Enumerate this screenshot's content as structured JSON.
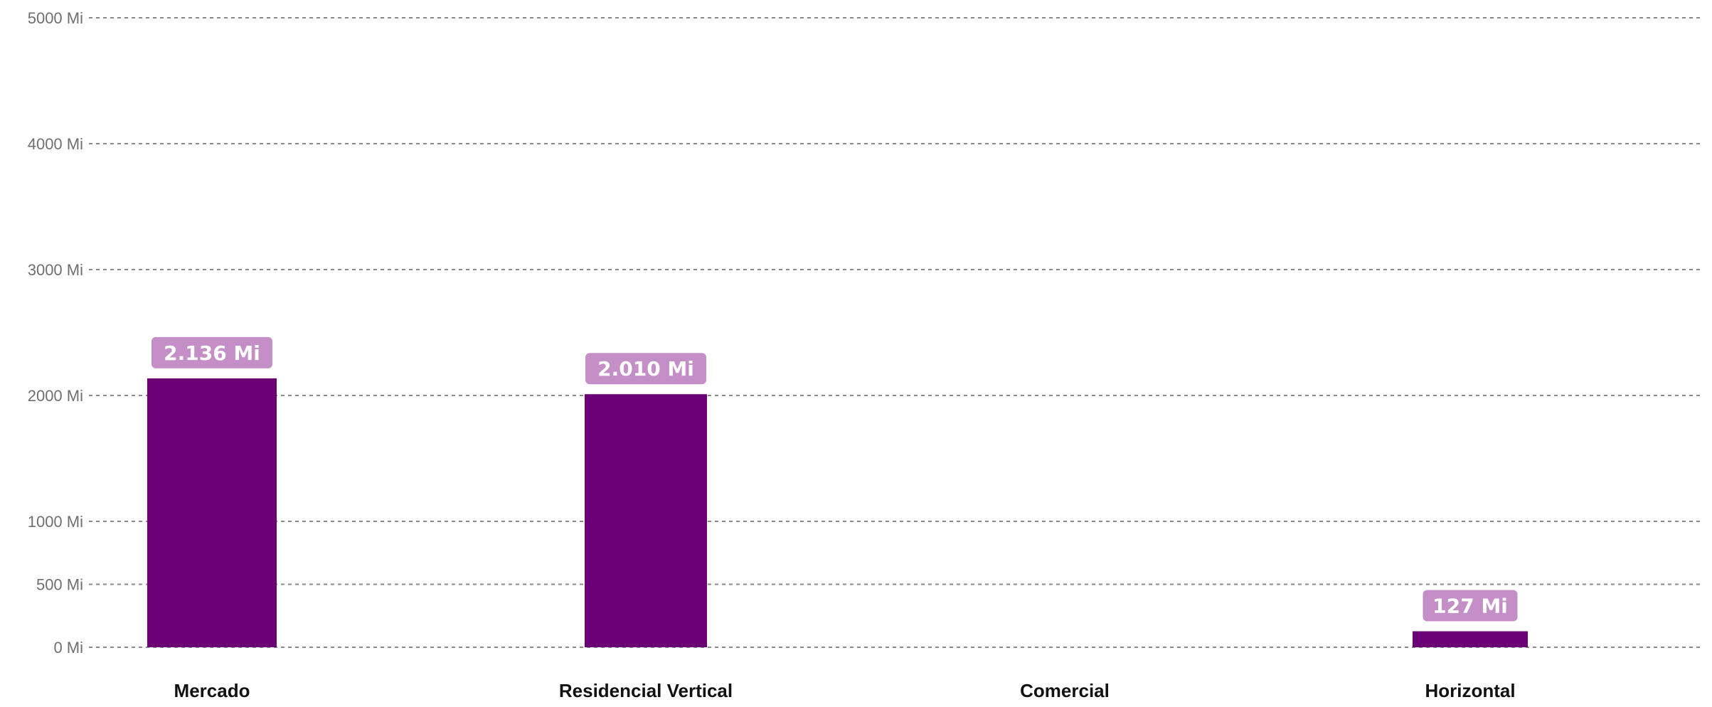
{
  "chart_data": {
    "type": "bar",
    "categories": [
      "Mercado",
      "Residencial Vertical",
      "Comercial",
      "Horizontal"
    ],
    "values": [
      2136,
      2010,
      0,
      127
    ],
    "data_labels": [
      "2.136 Mi",
      "2.010 Mi",
      "",
      "127 Mi"
    ],
    "y_ticks": [
      0,
      500,
      1000,
      2000,
      3000,
      4000,
      5000
    ],
    "y_tick_labels": [
      "0 Mi",
      "500 Mi",
      "1000 Mi",
      "2000 Mi",
      "3000 Mi",
      "4000 Mi",
      "5000 Mi"
    ],
    "ylim": [
      0,
      5000
    ],
    "grid": true,
    "title": "",
    "xlabel": "",
    "ylabel": "",
    "colors": {
      "bar": "#6a0073",
      "label_bg": "#c48fc7",
      "label_text": "#ffffff",
      "grid": "#8a8a8a",
      "tick_text": "#6f6f6f",
      "category_text": "#111111"
    }
  }
}
